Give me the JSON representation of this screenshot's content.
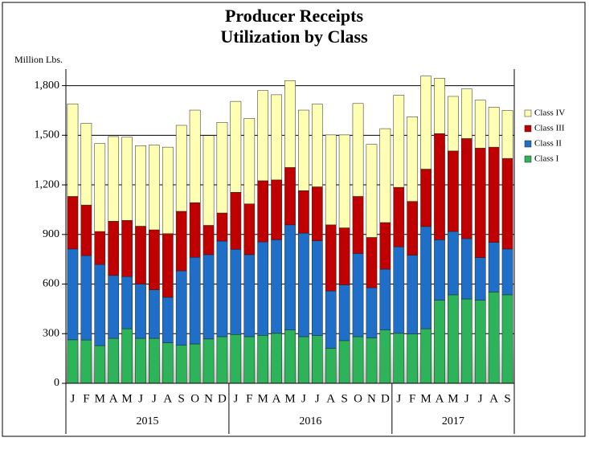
{
  "chart_data": {
    "type": "stacked-bar",
    "title": "Producer Receipts",
    "subtitle": "Utilization by Class",
    "y_label": "Million Lbs.",
    "groups": [
      {
        "label": "2015",
        "categories": [
          "J",
          "F",
          "M",
          "A",
          "M",
          "J",
          "J",
          "A",
          "S",
          "O",
          "N",
          "D"
        ]
      },
      {
        "label": "2016",
        "categories": [
          "J",
          "F",
          "M",
          "A",
          "M",
          "J",
          "J",
          "A",
          "S",
          "O",
          "N",
          "D"
        ]
      },
      {
        "label": "2017",
        "categories": [
          "J",
          "F",
          "M",
          "A",
          "M",
          "J",
          "J",
          "A",
          "S"
        ]
      }
    ],
    "series": [
      {
        "name": "Class I",
        "color": "#2db35a",
        "values": [
          263,
          262,
          228,
          272,
          330,
          272,
          272,
          245,
          230,
          238,
          268,
          282,
          295,
          282,
          290,
          302,
          322,
          282,
          288,
          212,
          258,
          282,
          275,
          322,
          302,
          298,
          330,
          502,
          535,
          510,
          502,
          552,
          535
        ]
      },
      {
        "name": "Class II",
        "color": "#1f6fc8",
        "values": [
          549,
          510,
          490,
          380,
          315,
          328,
          293,
          275,
          450,
          524,
          510,
          578,
          515,
          496,
          565,
          566,
          636,
          626,
          574,
          346,
          337,
          503,
          303,
          368,
          523,
          477,
          618,
          366,
          383,
          365,
          258,
          300,
          277
        ]
      },
      {
        "name": "Class III",
        "color": "#c00000",
        "values": [
          318,
          306,
          200,
          328,
          340,
          350,
          363,
          385,
          360,
          330,
          177,
          170,
          345,
          307,
          370,
          362,
          347,
          257,
          326,
          400,
          345,
          345,
          304,
          282,
          360,
          325,
          347,
          642,
          487,
          605,
          662,
          576,
          548
        ]
      },
      {
        "name": "Class IV",
        "color": "#ffffb3",
        "values": [
          560,
          494,
          532,
          512,
          503,
          487,
          512,
          523,
          520,
          560,
          543,
          548,
          550,
          517,
          545,
          515,
          525,
          487,
          500,
          544,
          562,
          562,
          563,
          568,
          557,
          512,
          563,
          335,
          330,
          300,
          290,
          242,
          290
        ]
      }
    ],
    "ylim": [
      0,
      1900
    ],
    "yticks": [
      0,
      300,
      600,
      900,
      {
        "value": 1200,
        "label": "1,200"
      },
      {
        "value": 1500,
        "label": "1,500"
      },
      {
        "value": 1800,
        "label": "1,800"
      }
    ],
    "grid": true,
    "legend": "right"
  }
}
